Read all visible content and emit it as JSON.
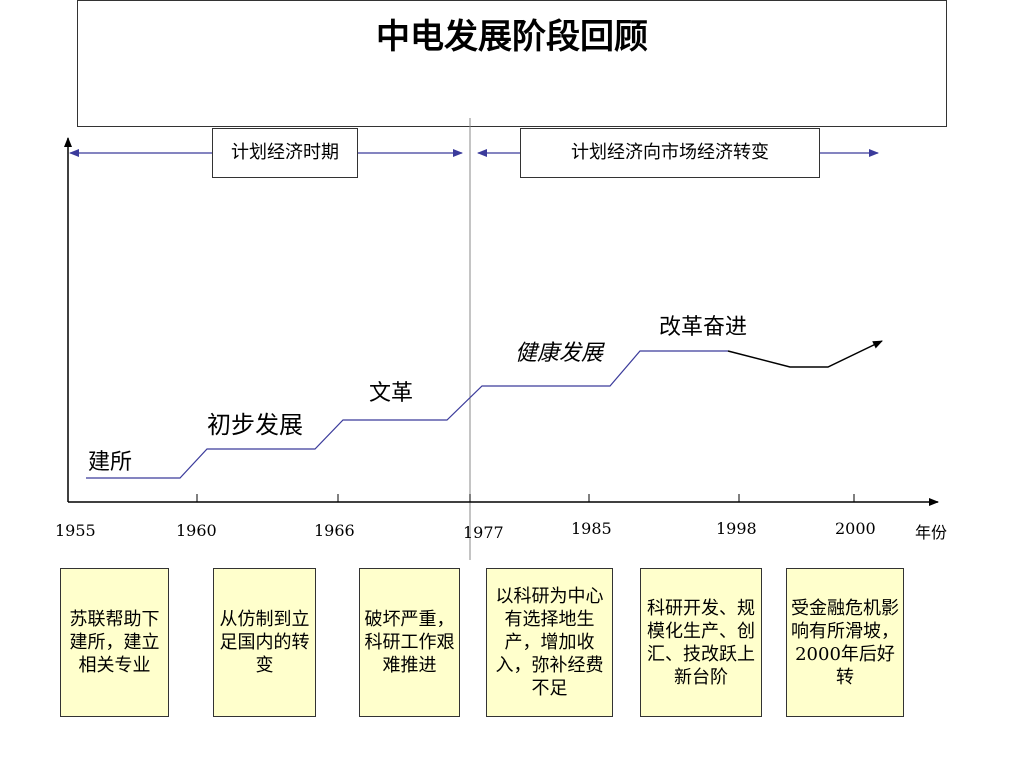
{
  "title": "中电发展阶段回顾",
  "periods": {
    "planned": "计划经济时期",
    "transition": "计划经济向市场经济转变"
  },
  "stages": {
    "founding": "建所",
    "initial": "初步发展",
    "cultural_revolution": "文革",
    "healthy": "健康发展",
    "reform": "改革奋进"
  },
  "axis": {
    "unit": "年份",
    "years": [
      "1955",
      "1960",
      "1966",
      "1977",
      "1985",
      "1998",
      "2000"
    ]
  },
  "notes": [
    "苏联帮助下建所，建立相关专业",
    "从仿制到立足国内的转变",
    "破坏严重，科研工作艰难推进",
    "以科研为中心有选择地生产，增加收入，弥补经费不足",
    "科研开发、规模化生产、创汇、技改跃上新台阶",
    "受金融危机影响有所滑坡，2000年后好转"
  ],
  "colors": {
    "line": "#3b3b9b",
    "note_bg": "#ffffcc"
  }
}
